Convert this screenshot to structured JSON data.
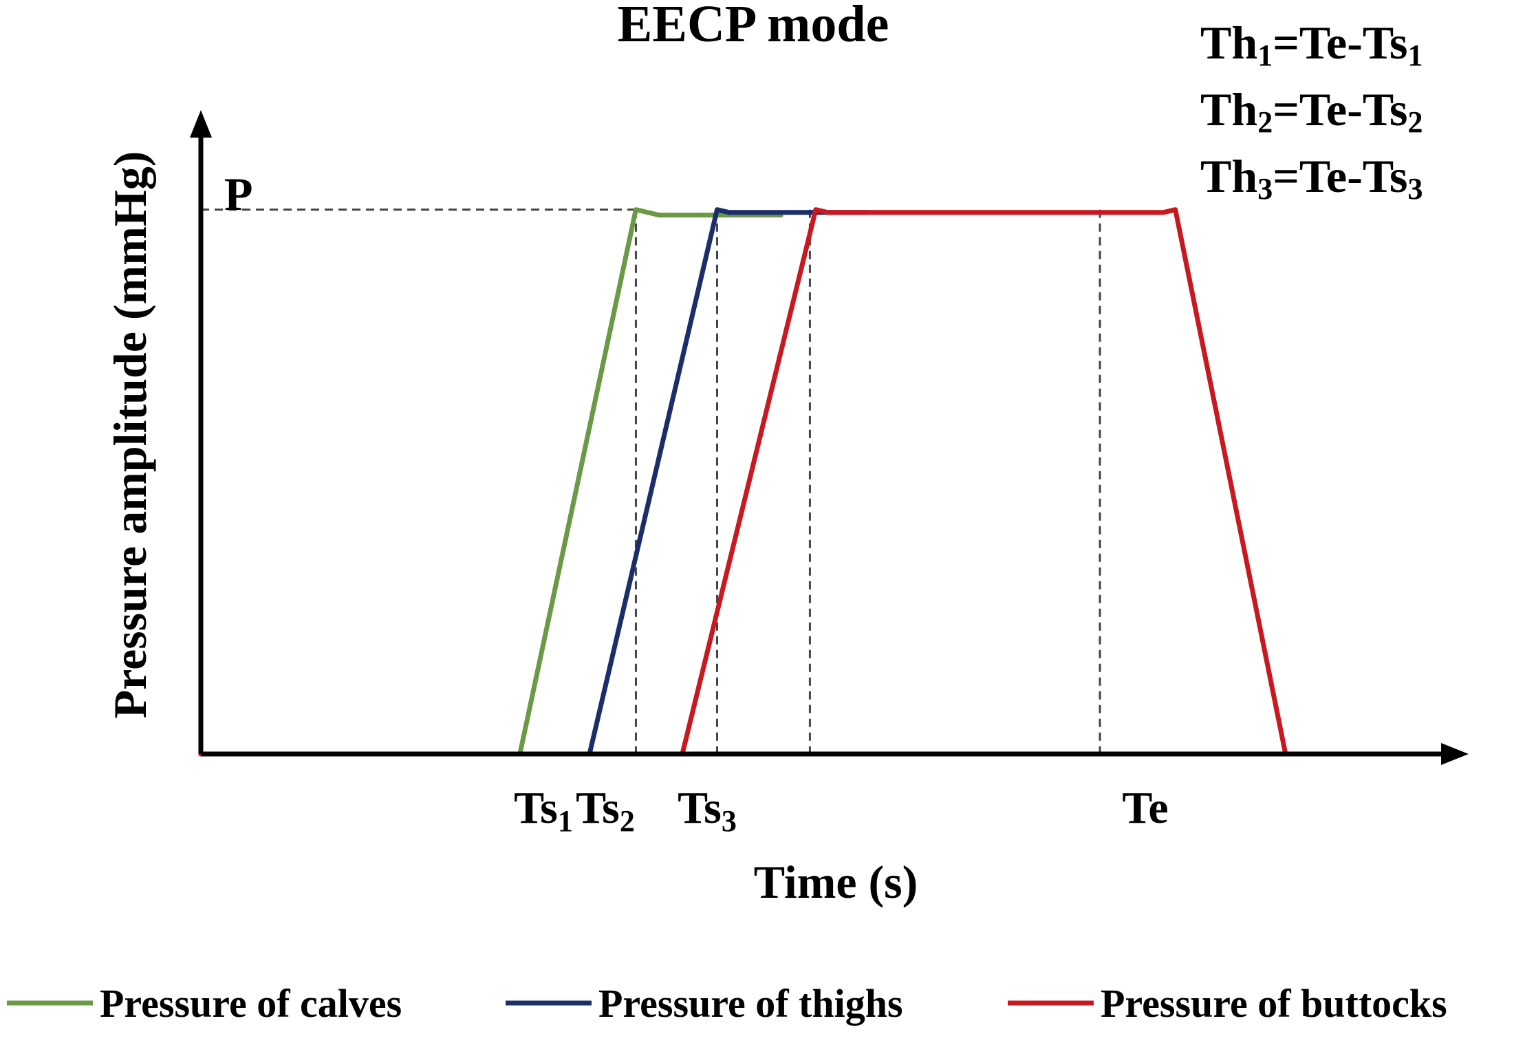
{
  "chart_data": {
    "type": "line",
    "title": "EECP mode",
    "xlabel": "Time (s)",
    "ylabel": "Pressure amplitude (mmHg)",
    "y_tick": "P",
    "x_ticks": [
      {
        "base": "Ts",
        "sub": "1",
        "value": 5.0
      },
      {
        "base": "Ts",
        "sub": "2",
        "value": 6.3
      },
      {
        "base": "Ts",
        "sub": "3",
        "value": 7.95
      },
      {
        "base": "Te",
        "sub": "",
        "value": 15.5
      }
    ],
    "xlim": [
      0,
      21.5
    ],
    "ylim": [
      0,
      1.15
    ],
    "plateau": 1.0,
    "formulas": [
      {
        "lhs": "Th",
        "lsub": "1",
        "rhs": "=Te-Ts",
        "rsub": "1"
      },
      {
        "lhs": "Th",
        "lsub": "2",
        "rhs": "=Te-Ts",
        "rsub": "2"
      },
      {
        "lhs": "Th",
        "lsub": "3",
        "rhs": "=Te-Ts",
        "rsub": "3"
      }
    ],
    "series": [
      {
        "name": "Pressure of calves",
        "color": "#6a9a45",
        "x": [
          0,
          5.5,
          7.5,
          7.9,
          10.0
        ],
        "y": [
          0,
          0,
          1.0,
          0.99,
          0.99
        ]
      },
      {
        "name": "Pressure of thighs",
        "color": "#1c2d6a",
        "x": [
          0,
          6.7,
          8.9,
          9.1,
          11.5
        ],
        "y": [
          0,
          0,
          1.0,
          0.995,
          0.995
        ]
      },
      {
        "name": "Pressure of buttocks",
        "color": "#c8191f",
        "x": [
          0,
          8.3,
          10.6,
          10.8,
          16.6,
          16.8,
          18.7,
          21.5
        ],
        "y": [
          0,
          0,
          1.0,
          0.995,
          0.995,
          1.0,
          0,
          0
        ]
      }
    ],
    "reference_x": [
      7.5,
      8.9,
      10.5,
      15.5
    ],
    "grid": false,
    "legend_position": "bottom"
  }
}
